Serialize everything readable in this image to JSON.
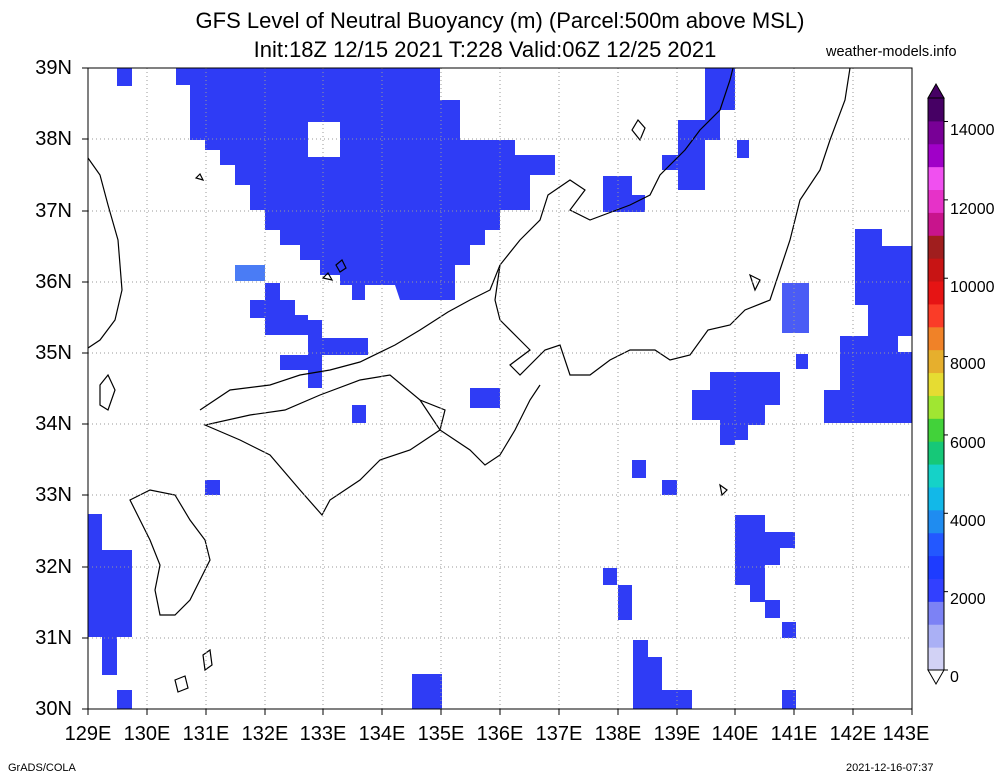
{
  "title_line1": "GFS Level of Neutral Buoyancy (m) (Parcel:500m above MSL)",
  "title_line2": "Init:18Z 12/15 2021 T:228 Valid:06Z 12/25 2021",
  "site": "weather-models.info",
  "footer_left": "GrADS/COLA",
  "footer_right": "2021-12-16-07:37",
  "lat_labels": [
    "39N",
    "38N",
    "37N",
    "36N",
    "35N",
    "34N",
    "33N",
    "32N",
    "31N",
    "30N"
  ],
  "lon_labels": [
    "129E",
    "130E",
    "131E",
    "132E",
    "133E",
    "134E",
    "135E",
    "136E",
    "137E",
    "138E",
    "139E",
    "140E",
    "141E",
    "142E",
    "143E"
  ],
  "colorbar_labels": [
    "14000",
    "12000",
    "10000",
    "8000",
    "6000",
    "4000",
    "2000",
    "0"
  ],
  "colorbar_colors": [
    "#d2d2f5",
    "#aab0f5",
    "#7c82f5",
    "#3240ff",
    "#1e3cff",
    "#2358ff",
    "#1f8cf0",
    "#12b8e8",
    "#15d2c8",
    "#16c878",
    "#42d23a",
    "#a0e632",
    "#e6dc32",
    "#e6af2d",
    "#f08228",
    "#fa3c28",
    "#e61414",
    "#c81414",
    "#a01e1e",
    "#c8148c",
    "#e632c8",
    "#f050f0",
    "#a000c8",
    "#780096",
    "#460064"
  ],
  "map_data": {
    "variable": "Level of Neutral Buoyancy",
    "units": "m",
    "lon_range": [
      129,
      143
    ],
    "lat_range": [
      30,
      39
    ],
    "dominant_value_range": [
      1500,
      2500
    ]
  }
}
